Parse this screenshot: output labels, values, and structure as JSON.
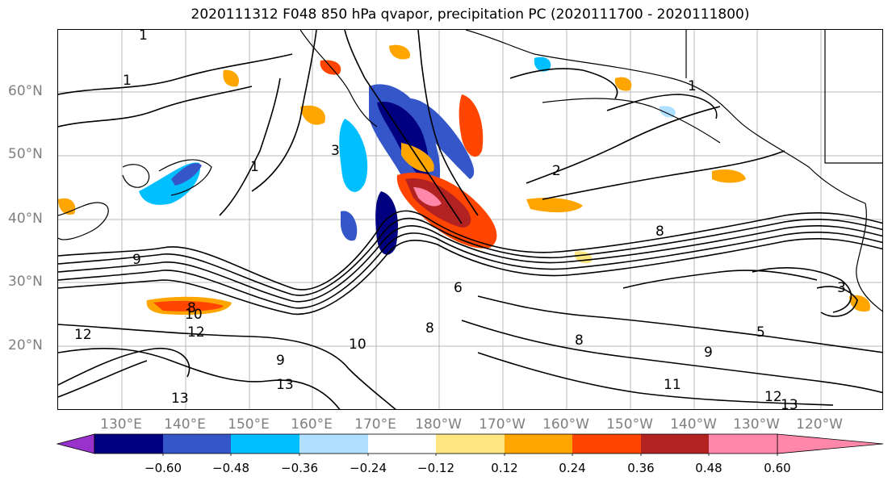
{
  "title": "2020111312 F048 850 hPa qvapor, precipitation PC (2020111700 - 2020111800)",
  "lat_labels": [
    "60°N",
    "50°N",
    "40°N",
    "30°N",
    "20°N"
  ],
  "lon_labels": [
    "130°E",
    "140°E",
    "150°E",
    "160°E",
    "170°E",
    "180°W",
    "170°W",
    "160°W",
    "150°W",
    "140°W",
    "130°W",
    "120°W"
  ],
  "contour_labels": [
    "1",
    "1",
    "1",
    "3",
    "6",
    "8",
    "8",
    "8",
    "8",
    "9",
    "9",
    "9",
    "10",
    "10",
    "11",
    "12",
    "12",
    "12",
    "13",
    "13",
    "13",
    "1",
    "2",
    "3",
    "5"
  ],
  "colorbar": {
    "ticks": [
      "−0.60",
      "−0.48",
      "−0.36",
      "−0.24",
      "−0.12",
      "0.12",
      "0.24",
      "0.36",
      "0.48",
      "0.60"
    ],
    "colors": [
      "#9932cc",
      "#000080",
      "#3556c8",
      "#00bfff",
      "#b0e0ff",
      "#ffffff",
      "#ffe680",
      "#ffa500",
      "#ff4500",
      "#b22222",
      "#ff88aa"
    ]
  },
  "map_colors": {
    "land_border": "#000000",
    "grid": "#9e9e9e",
    "contour": "#000000"
  }
}
